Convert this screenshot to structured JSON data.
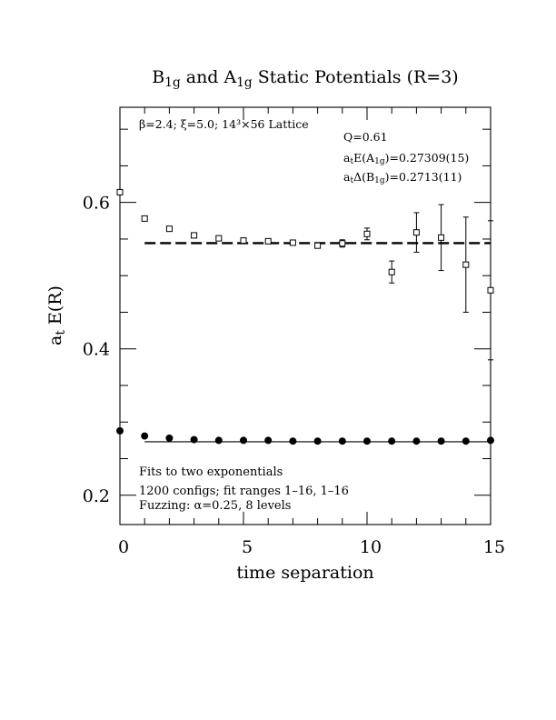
{
  "chart_data": {
    "type": "scatter",
    "title": {
      "parts": [
        {
          "t": "B",
          "sub": false
        },
        {
          "t": "1g",
          "sub": true
        },
        {
          "t": " and A",
          "sub": false
        },
        {
          "t": "1g",
          "sub": true
        },
        {
          "t": " Static Potentials (R=3)",
          "sub": false
        }
      ]
    },
    "xlabel": "time separation",
    "ylabel": {
      "main": "a",
      "sub": "t",
      "rest": " E(R)"
    },
    "xlim": [
      0,
      15
    ],
    "ylim": [
      0.16,
      0.73
    ],
    "xticks": [
      0,
      5,
      10,
      15
    ],
    "xtick_labels": [
      "0",
      "5",
      "10",
      "15"
    ],
    "yticks": [
      0.2,
      0.4,
      0.6
    ],
    "ytick_labels": [
      "0.2",
      "0.4",
      "0.6"
    ],
    "grid": false,
    "annotations": {
      "top_left": "β=2.4; ξ=5.0; 14³×56 Lattice",
      "q": "Q=0.61",
      "a1g_fit": {
        "pre": "a",
        "pre_sub": "t",
        "mid": "E(A",
        "mid_sub": "1g",
        "post": ")=0.27309(15)"
      },
      "b1g_fit": {
        "pre": "a",
        "pre_sub": "t",
        "mid": "Δ(B",
        "mid_sub": "1g",
        "post": ")=0.2713(11)"
      },
      "bottom_1": "Fits to two exponentials",
      "bottom_2": "1200 configs; fit ranges 1–16, 1–16",
      "bottom_3": "Fuzzing: α=0.25, 8 levels"
    },
    "series": [
      {
        "marker": "open-square",
        "x": [
          0,
          1,
          2,
          3,
          4,
          5,
          6,
          7,
          8,
          9,
          10,
          11,
          12,
          13,
          14,
          15
        ],
        "y": [
          0.614,
          0.578,
          0.564,
          0.555,
          0.551,
          0.548,
          0.547,
          0.545,
          0.541,
          0.544,
          0.557,
          0.505,
          0.559,
          0.552,
          0.515,
          0.48
        ],
        "yerr": [
          0.001,
          0.001,
          0.001,
          0.002,
          0.002,
          0.002,
          0.002,
          0.002,
          0.003,
          0.005,
          0.008,
          0.015,
          0.027,
          0.045,
          0.065,
          0.095
        ]
      },
      {
        "marker": "filled-circle",
        "x": [
          0,
          1,
          2,
          3,
          4,
          5,
          6,
          7,
          8,
          9,
          10,
          11,
          12,
          13,
          14,
          15
        ],
        "y": [
          0.288,
          0.281,
          0.278,
          0.276,
          0.275,
          0.275,
          0.275,
          0.274,
          0.274,
          0.274,
          0.274,
          0.274,
          0.274,
          0.274,
          0.274,
          0.275
        ],
        "yerr": [
          0,
          0,
          0,
          0,
          0,
          0,
          0,
          0,
          0,
          0,
          0,
          0,
          0,
          0,
          0,
          0
        ]
      }
    ],
    "fit_lines": [
      {
        "y": 0.5444,
        "x": [
          1,
          15
        ],
        "style": "dashed"
      },
      {
        "y": 0.2731,
        "x": [
          1,
          15
        ],
        "style": "solid"
      }
    ]
  }
}
